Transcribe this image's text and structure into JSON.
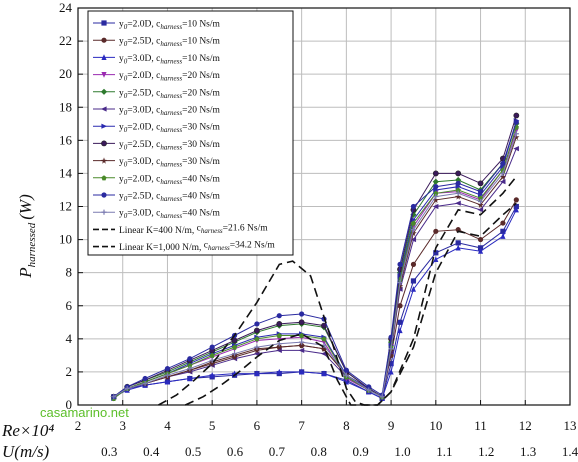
{
  "chart_data": {
    "type": "line",
    "xlabel_re": "Re×10⁴",
    "xlabel_u": "U(m/s)",
    "ylabel_main": "P",
    "ylabel_sub": "harnessed",
    "ylabel_unit": "(W)",
    "xlim": [
      2,
      13
    ],
    "ylim": [
      0,
      24
    ],
    "x_ticks": [
      "2",
      "3",
      "4",
      "5",
      "6",
      "7",
      "8",
      "9",
      "10",
      "11",
      "12",
      "13"
    ],
    "y_ticks": [
      "0",
      "2",
      "4",
      "6",
      "8",
      "10",
      "12",
      "14",
      "16",
      "18",
      "20",
      "22",
      "24"
    ],
    "u_ticks": [
      "0.3",
      "0.4",
      "0.5",
      "0.6",
      "0.7",
      "0.8",
      "0.9",
      "1.0",
      "1.1",
      "1.2",
      "1.3",
      "1.4"
    ],
    "grid": true,
    "legend_position": "top-left",
    "series": [
      {
        "label_pre": "y",
        "label_sub1": "0",
        "label_mid": "=2.0D, c",
        "label_sub2": "harness",
        "label_post": "=10 Ns/m",
        "color": "#2a2aa0",
        "marker": "square",
        "style": "solid",
        "x": [
          2.8,
          3.1,
          3.5,
          4.0,
          4.5,
          5.0,
          5.5,
          6.0,
          6.5,
          7.0,
          7.5,
          8.0,
          8.5,
          8.8,
          9.0,
          9.2,
          9.5,
          10.0,
          10.5,
          11.0,
          11.5,
          11.8
        ],
        "y": [
          0.5,
          1.0,
          1.2,
          1.4,
          1.6,
          1.7,
          1.8,
          1.9,
          1.9,
          2.0,
          1.9,
          1.5,
          0.8,
          0.4,
          2.5,
          5.0,
          7.5,
          9.2,
          9.8,
          9.5,
          10.5,
          12.0
        ]
      },
      {
        "label_pre": "y",
        "label_sub1": "0",
        "label_mid": "=2.5D, c",
        "label_sub2": "harness",
        "label_post": "=10 Ns/m",
        "color": "#5a2a2a",
        "marker": "circle",
        "style": "solid",
        "x": [
          2.8,
          3.1,
          3.5,
          4.0,
          4.5,
          5.0,
          5.5,
          6.0,
          6.5,
          7.0,
          7.5,
          8.0,
          8.5,
          8.8,
          9.0,
          9.2,
          9.5,
          10.0,
          10.5,
          11.0,
          11.5,
          11.8
        ],
        "y": [
          0.5,
          1.0,
          1.3,
          1.7,
          2.1,
          2.6,
          3.0,
          3.4,
          3.5,
          3.6,
          3.4,
          1.8,
          1.0,
          0.5,
          3.0,
          6.0,
          8.5,
          10.5,
          10.6,
          10.0,
          11.0,
          12.4
        ]
      },
      {
        "label_pre": "y",
        "label_sub1": "0",
        "label_mid": "=3.0D, c",
        "label_sub2": "harness",
        "label_post": "=10 Ns/m",
        "color": "#2a2ac0",
        "marker": "triangle",
        "style": "solid",
        "x": [
          2.8,
          3.1,
          3.5,
          4.0,
          4.5,
          5.0,
          5.5,
          6.0,
          6.5,
          7.0,
          7.5,
          8.0,
          8.5,
          8.8,
          9.0,
          9.2,
          9.5,
          10.0,
          10.5,
          11.0,
          11.5,
          11.8
        ],
        "y": [
          0.5,
          0.9,
          1.2,
          1.4,
          1.6,
          1.8,
          1.9,
          1.9,
          2.0,
          2.0,
          1.9,
          1.4,
          0.8,
          0.4,
          2.0,
          4.5,
          7.0,
          8.8,
          9.5,
          9.3,
          10.2,
          11.8
        ]
      },
      {
        "label_pre": "y",
        "label_sub1": "0",
        "label_mid": "=2.0D, c",
        "label_sub2": "harness",
        "label_post": "=20 Ns/m",
        "color": "#9a2ab0",
        "marker": "triangle-down",
        "style": "solid",
        "x": [
          2.8,
          3.1,
          3.5,
          4.0,
          4.5,
          5.0,
          5.5,
          6.0,
          6.5,
          7.0,
          7.5,
          8.0,
          8.5,
          8.8,
          9.0,
          9.2,
          9.5,
          10.0,
          10.5,
          11.0,
          11.5,
          11.8
        ],
        "y": [
          0.4,
          1.0,
          1.4,
          1.9,
          2.4,
          2.9,
          3.4,
          3.9,
          4.0,
          4.1,
          3.8,
          1.6,
          0.9,
          0.5,
          3.5,
          7.5,
          10.8,
          12.8,
          12.9,
          12.4,
          14.2,
          16.6
        ]
      },
      {
        "label_pre": "y",
        "label_sub1": "0",
        "label_mid": "=2.5D, c",
        "label_sub2": "harness",
        "label_post": "=20 Ns/m",
        "color": "#2e7a2e",
        "marker": "diamond",
        "style": "solid",
        "x": [
          2.8,
          3.1,
          3.5,
          4.0,
          4.5,
          5.0,
          5.5,
          6.0,
          6.5,
          7.0,
          7.5,
          8.0,
          8.5,
          8.8,
          9.0,
          9.2,
          9.5,
          10.0,
          10.5,
          11.0,
          11.5,
          11.8
        ],
        "y": [
          0.5,
          1.1,
          1.5,
          2.0,
          2.6,
          3.2,
          3.8,
          4.4,
          4.8,
          4.9,
          4.7,
          2.0,
          1.0,
          0.5,
          3.8,
          8.0,
          11.5,
          13.5,
          13.6,
          13.0,
          14.6,
          17.0
        ]
      },
      {
        "label_pre": "y",
        "label_sub1": "0",
        "label_mid": "=3.0D, c",
        "label_sub2": "harness",
        "label_post": "=20 Ns/m",
        "color": "#4a2a8a",
        "marker": "triangle-left",
        "style": "solid",
        "x": [
          2.8,
          3.1,
          3.5,
          4.0,
          4.5,
          5.0,
          5.5,
          6.0,
          6.5,
          7.0,
          7.5,
          8.0,
          8.5,
          8.8,
          9.0,
          9.2,
          9.5,
          10.0,
          10.5,
          11.0,
          11.5,
          11.8
        ],
        "y": [
          0.5,
          1.0,
          1.3,
          1.7,
          2.0,
          2.4,
          2.8,
          3.1,
          3.3,
          3.3,
          3.1,
          1.7,
          0.9,
          0.5,
          3.2,
          7.0,
          10.0,
          12.0,
          12.2,
          11.8,
          13.5,
          15.5
        ]
      },
      {
        "label_pre": "y",
        "label_sub1": "0",
        "label_mid": "=2.0D, c",
        "label_sub2": "harness",
        "label_post": "=30 Ns/m",
        "color": "#2a2ab0",
        "marker": "triangle-right",
        "style": "solid",
        "x": [
          2.8,
          3.1,
          3.5,
          4.0,
          4.5,
          5.0,
          5.5,
          6.0,
          6.5,
          7.0,
          7.5,
          8.0,
          8.5,
          8.8,
          9.0,
          9.2,
          9.5,
          10.0,
          10.5,
          11.0,
          11.5,
          11.8
        ],
        "y": [
          0.4,
          1.0,
          1.4,
          1.9,
          2.5,
          3.1,
          3.6,
          4.1,
          4.3,
          4.3,
          4.1,
          1.8,
          1.0,
          0.5,
          3.6,
          7.8,
          11.2,
          13.0,
          13.2,
          12.7,
          14.4,
          17.2
        ]
      },
      {
        "label_pre": "y",
        "label_sub1": "0",
        "label_mid": "=2.5D, c",
        "label_sub2": "harness",
        "label_post": "=30 Ns/m",
        "color": "#3a1a5a",
        "marker": "hexagon",
        "style": "solid",
        "x": [
          2.8,
          3.1,
          3.5,
          4.0,
          4.5,
          5.0,
          5.5,
          6.0,
          6.5,
          7.0,
          7.5,
          8.0,
          8.5,
          8.8,
          9.0,
          9.2,
          9.5,
          10.0,
          10.5,
          11.0,
          11.5,
          11.8
        ],
        "y": [
          0.5,
          1.1,
          1.5,
          2.1,
          2.7,
          3.3,
          3.9,
          4.5,
          4.9,
          5.0,
          4.8,
          2.0,
          1.0,
          0.5,
          4.0,
          8.2,
          11.8,
          14.0,
          14.0,
          13.4,
          14.9,
          17.5
        ]
      },
      {
        "label_pre": "y",
        "label_sub1": "0",
        "label_mid": "=3.0D, c",
        "label_sub2": "harness",
        "label_post": "=30 Ns/m",
        "color": "#5a2a2a",
        "marker": "star",
        "style": "solid",
        "x": [
          2.8,
          3.1,
          3.5,
          4.0,
          4.5,
          5.0,
          5.5,
          6.0,
          6.5,
          7.0,
          7.5,
          8.0,
          8.5,
          8.8,
          9.0,
          9.2,
          9.5,
          10.0,
          10.5,
          11.0,
          11.5,
          11.8
        ],
        "y": [
          0.5,
          1.0,
          1.3,
          1.7,
          2.1,
          2.5,
          2.9,
          3.3,
          3.5,
          3.6,
          3.4,
          1.8,
          0.9,
          0.5,
          3.3,
          7.2,
          10.4,
          12.4,
          12.6,
          12.1,
          13.8,
          16.2
        ]
      },
      {
        "label_pre": "y",
        "label_sub1": "0",
        "label_mid": "=2.0D, c",
        "label_sub2": "harness",
        "label_post": "=40 Ns/m",
        "color": "#4a8a2a",
        "marker": "pentagon",
        "style": "solid",
        "x": [
          2.8,
          3.1,
          3.5,
          4.0,
          4.5,
          5.0,
          5.5,
          6.0,
          6.5,
          7.0,
          7.5,
          8.0,
          8.5,
          8.8,
          9.0,
          9.2,
          9.5,
          10.0,
          10.5,
          11.0,
          11.5,
          11.8
        ],
        "y": [
          0.4,
          1.0,
          1.4,
          1.9,
          2.4,
          3.0,
          3.5,
          4.0,
          4.2,
          4.2,
          4.0,
          1.7,
          0.9,
          0.5,
          3.5,
          7.6,
          11.0,
          12.8,
          13.0,
          12.5,
          14.2,
          16.8
        ]
      },
      {
        "label_pre": "y",
        "label_sub1": "0",
        "label_mid": "=2.5D, c",
        "label_sub2": "harness",
        "label_post": "=40 Ns/m",
        "color": "#2a2aa0",
        "marker": "circle",
        "style": "solid",
        "x": [
          2.8,
          3.1,
          3.5,
          4.0,
          4.5,
          5.0,
          5.5,
          6.0,
          6.5,
          7.0,
          7.5,
          8.0,
          8.5,
          8.8,
          9.0,
          9.2,
          9.5,
          10.0,
          10.5,
          11.0,
          11.5,
          11.8
        ],
        "y": [
          0.5,
          1.1,
          1.6,
          2.2,
          2.8,
          3.5,
          4.2,
          4.9,
          5.4,
          5.5,
          5.2,
          2.1,
          1.1,
          0.6,
          4.1,
          8.5,
          12.0,
          13.2,
          13.4,
          12.9,
          14.6,
          17.1
        ]
      },
      {
        "label_pre": "y",
        "label_sub1": "0",
        "label_mid": "=3.0D, c",
        "label_sub2": "harness",
        "label_post": "=40 Ns/m",
        "color": "#7a7ab0",
        "marker": "cross",
        "style": "solid",
        "x": [
          2.8,
          3.1,
          3.5,
          4.0,
          4.5,
          5.0,
          5.5,
          6.0,
          6.5,
          7.0,
          7.5,
          8.0,
          8.5,
          8.8,
          9.0,
          9.2,
          9.5,
          10.0,
          10.5,
          11.0,
          11.5,
          11.8
        ],
        "y": [
          0.5,
          1.0,
          1.3,
          1.8,
          2.2,
          2.7,
          3.1,
          3.5,
          3.7,
          3.8,
          3.6,
          1.8,
          0.9,
          0.5,
          3.4,
          7.4,
          10.6,
          12.6,
          12.8,
          12.3,
          14.0,
          16.4
        ]
      },
      {
        "label_pre": "Linear K=400 N/m, ",
        "label_sub1": "",
        "label_mid": "c",
        "label_sub2": "harness",
        "label_post": "=21.6 Ns/m",
        "color": "#111111",
        "marker": "none",
        "style": "dash",
        "x": [
          3.8,
          4.2,
          4.6,
          5.0,
          5.5,
          6.0,
          6.5,
          6.8,
          7.2,
          7.6,
          8.0,
          8.2,
          8.4,
          8.7,
          9.0,
          9.5,
          10.0,
          10.5,
          11.0,
          11.5,
          11.8
        ],
        "y": [
          0.0,
          0.6,
          1.5,
          2.5,
          4.2,
          6.2,
          8.5,
          8.7,
          7.8,
          4.5,
          1.0,
          0.2,
          0.0,
          0.0,
          0.8,
          3.5,
          8.0,
          10.5,
          10.2,
          11.5,
          12.2
        ]
      },
      {
        "label_pre": "Linear K=1,000 N/m, ",
        "label_sub1": "",
        "label_mid": "c",
        "label_sub2": "harness",
        "label_post": "=34.2 Ns/m",
        "color": "#111111",
        "marker": "none",
        "style": "dash",
        "x": [
          4.4,
          4.8,
          5.2,
          5.6,
          6.0,
          6.5,
          7.0,
          7.5,
          7.8,
          8.1,
          8.4,
          8.7,
          9.0,
          9.5,
          10.0,
          10.5,
          11.0,
          11.5,
          11.8
        ],
        "y": [
          0.0,
          0.5,
          1.2,
          2.0,
          2.9,
          3.9,
          4.3,
          3.5,
          1.5,
          0.0,
          0.0,
          0.0,
          0.8,
          4.0,
          9.5,
          11.8,
          11.5,
          12.8,
          13.8
        ]
      }
    ]
  },
  "watermark": "casamarino.net"
}
